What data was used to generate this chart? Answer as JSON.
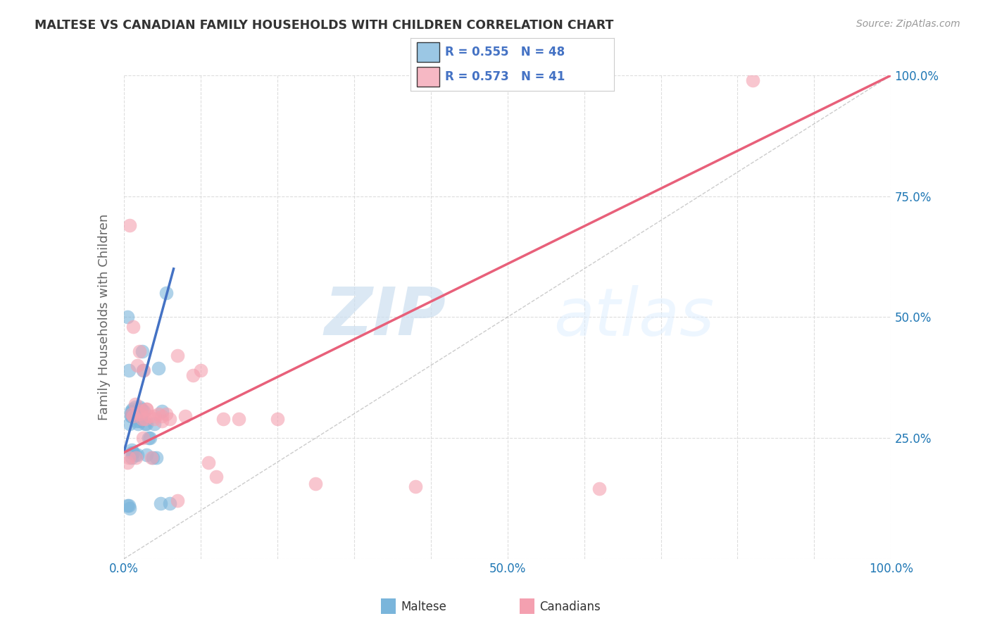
{
  "title": "MALTESE VS CANADIAN FAMILY HOUSEHOLDS WITH CHILDREN CORRELATION CHART",
  "source": "Source: ZipAtlas.com",
  "ylabel": "Family Households with Children",
  "xlim": [
    0,
    1.0
  ],
  "ylim": [
    0,
    1.0
  ],
  "xtick_positions": [
    0.0,
    0.1,
    0.2,
    0.3,
    0.4,
    0.5,
    0.6,
    0.7,
    0.8,
    0.9,
    1.0
  ],
  "xticklabels": [
    "0.0%",
    "",
    "",
    "",
    "",
    "50.0%",
    "",
    "",
    "",
    "",
    "100.0%"
  ],
  "ytick_positions": [
    0.0,
    0.25,
    0.5,
    0.75,
    1.0
  ],
  "yticklabels_right": [
    "",
    "25.0%",
    "50.0%",
    "75.0%",
    "100.0%"
  ],
  "maltese_color": "#7ab5db",
  "canadian_color": "#f4a0b0",
  "maltese_R": 0.555,
  "maltese_N": 48,
  "canadian_R": 0.573,
  "canadian_N": 41,
  "legend_label_maltese": "Maltese",
  "legend_label_canadian": "Canadians",
  "watermark_zip": "ZIP",
  "watermark_atlas": "atlas",
  "blue_line_color": "#4472c4",
  "pink_line_color": "#e8607a",
  "grid_color": "#dddddd",
  "title_color": "#333333",
  "axis_label_color": "#666666",
  "tick_color": "#1f77b4",
  "source_color": "#999999",
  "maltese_x": [
    0.005,
    0.007,
    0.008,
    0.008,
    0.009,
    0.009,
    0.009,
    0.01,
    0.01,
    0.01,
    0.011,
    0.011,
    0.012,
    0.012,
    0.012,
    0.013,
    0.013,
    0.014,
    0.015,
    0.015,
    0.016,
    0.017,
    0.018,
    0.018,
    0.019,
    0.02,
    0.02,
    0.022,
    0.023,
    0.024,
    0.025,
    0.026,
    0.028,
    0.03,
    0.03,
    0.032,
    0.034,
    0.038,
    0.04,
    0.042,
    0.045,
    0.048,
    0.05,
    0.055,
    0.06,
    0.005,
    0.007,
    0.01
  ],
  "maltese_y": [
    0.11,
    0.11,
    0.105,
    0.28,
    0.305,
    0.3,
    0.295,
    0.295,
    0.225,
    0.22,
    0.31,
    0.305,
    0.3,
    0.295,
    0.22,
    0.305,
    0.3,
    0.295,
    0.315,
    0.215,
    0.3,
    0.285,
    0.295,
    0.215,
    0.28,
    0.285,
    0.315,
    0.29,
    0.31,
    0.43,
    0.39,
    0.305,
    0.28,
    0.28,
    0.215,
    0.25,
    0.25,
    0.21,
    0.28,
    0.21,
    0.395,
    0.115,
    0.305,
    0.55,
    0.115,
    0.5,
    0.39,
    0.21
  ],
  "canadian_x": [
    0.005,
    0.007,
    0.01,
    0.012,
    0.015,
    0.016,
    0.018,
    0.02,
    0.022,
    0.024,
    0.026,
    0.028,
    0.03,
    0.033,
    0.036,
    0.04,
    0.045,
    0.05,
    0.055,
    0.06,
    0.07,
    0.08,
    0.09,
    0.1,
    0.11,
    0.13,
    0.15,
    0.2,
    0.25,
    0.38,
    0.62,
    0.82,
    0.008,
    0.012,
    0.02,
    0.025,
    0.03,
    0.04,
    0.05,
    0.07,
    0.12
  ],
  "canadian_y": [
    0.2,
    0.21,
    0.3,
    0.295,
    0.32,
    0.21,
    0.4,
    0.3,
    0.305,
    0.29,
    0.39,
    0.29,
    0.31,
    0.295,
    0.21,
    0.29,
    0.3,
    0.285,
    0.3,
    0.29,
    0.42,
    0.295,
    0.38,
    0.39,
    0.2,
    0.29,
    0.29,
    0.29,
    0.155,
    0.15,
    0.145,
    0.99,
    0.69,
    0.48,
    0.43,
    0.25,
    0.31,
    0.295,
    0.295,
    0.12,
    0.17
  ],
  "blue_line_x": [
    0.0,
    0.065
  ],
  "blue_line_y_start": 0.22,
  "blue_line_y_end": 0.6,
  "pink_line_x": [
    0.0,
    1.0
  ],
  "pink_line_y_start": 0.22,
  "pink_line_y_end": 1.0
}
